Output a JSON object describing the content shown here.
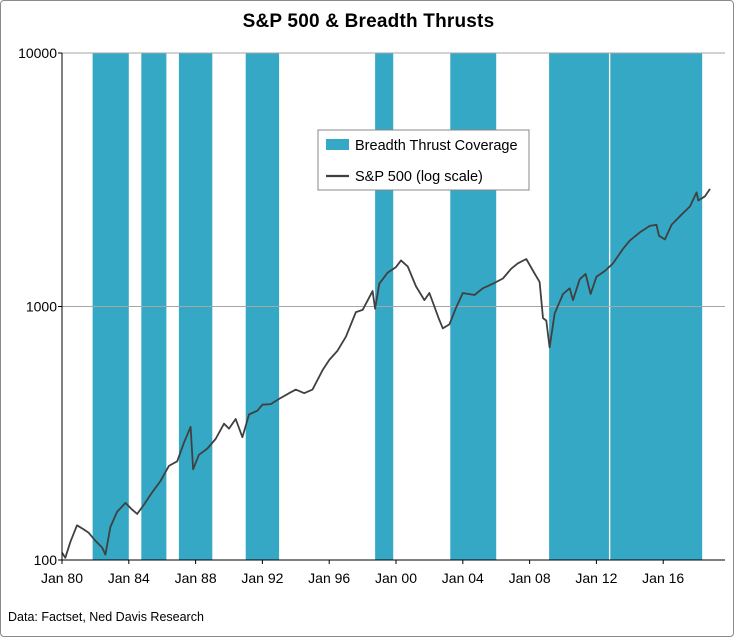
{
  "chart_data": {
    "type": "line",
    "title": "S&P 500 & Breadth  Thrusts",
    "source": "Data: Factset, Ned Davis Research",
    "y_scale": "log",
    "ylim": [
      100,
      10000
    ],
    "y_ticks": [
      {
        "value": 100,
        "label": "100"
      },
      {
        "value": 1000,
        "label": "1000"
      },
      {
        "value": 10000,
        "label": "10000"
      }
    ],
    "xlim": [
      1980.0,
      2019.7
    ],
    "x_ticks": [
      {
        "value": 1980,
        "label": "Jan 80"
      },
      {
        "value": 1984,
        "label": "Jan 84"
      },
      {
        "value": 1988,
        "label": "Jan 88"
      },
      {
        "value": 1992,
        "label": "Jan 92"
      },
      {
        "value": 1996,
        "label": "Jan 96"
      },
      {
        "value": 2000,
        "label": "Jan 00"
      },
      {
        "value": 2004,
        "label": "Jan 04"
      },
      {
        "value": 2008,
        "label": "Jan 08"
      },
      {
        "value": 2012,
        "label": "Jan 12"
      },
      {
        "value": 2016,
        "label": "Jan 16"
      }
    ],
    "gridlines": "horizontal at 1000 and 10000",
    "legend_position": "upper-center",
    "colors": {
      "coverage": "#34A8C4",
      "line": "#404040",
      "grid": "#a6a6a6"
    },
    "coverage_series": {
      "name": "Breadth Thrust Coverage",
      "periods": [
        [
          "1981-11",
          "1984-01"
        ],
        [
          "1984-10",
          "1986-04"
        ],
        [
          "1987-01",
          "1989-01"
        ],
        [
          "1991-01",
          "1993-01"
        ],
        [
          "1998-10",
          "1999-11"
        ],
        [
          "2003-04",
          "2006-01"
        ],
        [
          "2009-03",
          "2012-10"
        ],
        [
          "2012-11",
          "2018-05"
        ]
      ]
    },
    "line_series": {
      "name": "S&P 500 (log scale)",
      "points": [
        [
          1980.0,
          107
        ],
        [
          1980.2,
          102
        ],
        [
          1980.5,
          118
        ],
        [
          1980.9,
          137
        ],
        [
          1981.3,
          132
        ],
        [
          1981.6,
          128
        ],
        [
          1982.0,
          119
        ],
        [
          1982.4,
          112
        ],
        [
          1982.6,
          105
        ],
        [
          1982.9,
          135
        ],
        [
          1983.3,
          155
        ],
        [
          1983.8,
          168
        ],
        [
          1984.2,
          158
        ],
        [
          1984.5,
          152
        ],
        [
          1984.9,
          165
        ],
        [
          1985.4,
          185
        ],
        [
          1985.9,
          205
        ],
        [
          1986.4,
          235
        ],
        [
          1986.9,
          245
        ],
        [
          1987.3,
          290
        ],
        [
          1987.7,
          335
        ],
        [
          1987.85,
          228
        ],
        [
          1988.2,
          260
        ],
        [
          1988.7,
          275
        ],
        [
          1989.2,
          300
        ],
        [
          1989.7,
          345
        ],
        [
          1990.0,
          330
        ],
        [
          1990.4,
          360
        ],
        [
          1990.8,
          305
        ],
        [
          1991.2,
          375
        ],
        [
          1991.7,
          388
        ],
        [
          1992.0,
          410
        ],
        [
          1992.5,
          412
        ],
        [
          1993.0,
          432
        ],
        [
          1993.6,
          455
        ],
        [
          1994.0,
          470
        ],
        [
          1994.5,
          455
        ],
        [
          1995.0,
          470
        ],
        [
          1995.6,
          560
        ],
        [
          1996.0,
          615
        ],
        [
          1996.5,
          670
        ],
        [
          1997.0,
          760
        ],
        [
          1997.6,
          950
        ],
        [
          1998.0,
          970
        ],
        [
          1998.6,
          1150
        ],
        [
          1998.75,
          980
        ],
        [
          1999.0,
          1230
        ],
        [
          1999.5,
          1360
        ],
        [
          2000.0,
          1430
        ],
        [
          2000.3,
          1520
        ],
        [
          2000.7,
          1440
        ],
        [
          2001.2,
          1200
        ],
        [
          2001.7,
          1060
        ],
        [
          2002.0,
          1130
        ],
        [
          2002.55,
          900
        ],
        [
          2002.8,
          820
        ],
        [
          2003.2,
          850
        ],
        [
          2003.6,
          990
        ],
        [
          2004.0,
          1130
        ],
        [
          2004.7,
          1110
        ],
        [
          2005.2,
          1180
        ],
        [
          2005.8,
          1230
        ],
        [
          2006.4,
          1290
        ],
        [
          2006.9,
          1410
        ],
        [
          2007.3,
          1480
        ],
        [
          2007.8,
          1540
        ],
        [
          2008.3,
          1350
        ],
        [
          2008.6,
          1250
        ],
        [
          2008.8,
          900
        ],
        [
          2009.0,
          880
        ],
        [
          2009.2,
          690
        ],
        [
          2009.5,
          940
        ],
        [
          2010.0,
          1120
        ],
        [
          2010.4,
          1180
        ],
        [
          2010.6,
          1060
        ],
        [
          2011.0,
          1280
        ],
        [
          2011.35,
          1345
        ],
        [
          2011.65,
          1120
        ],
        [
          2012.0,
          1310
        ],
        [
          2012.5,
          1380
        ],
        [
          2013.0,
          1480
        ],
        [
          2013.6,
          1690
        ],
        [
          2014.0,
          1820
        ],
        [
          2014.6,
          1960
        ],
        [
          2015.2,
          2080
        ],
        [
          2015.6,
          2100
        ],
        [
          2015.75,
          1900
        ],
        [
          2016.1,
          1840
        ],
        [
          2016.5,
          2100
        ],
        [
          2017.0,
          2270
        ],
        [
          2017.6,
          2480
        ],
        [
          2018.0,
          2820
        ],
        [
          2018.1,
          2620
        ],
        [
          2018.5,
          2720
        ],
        [
          2018.8,
          2910
        ]
      ]
    }
  }
}
